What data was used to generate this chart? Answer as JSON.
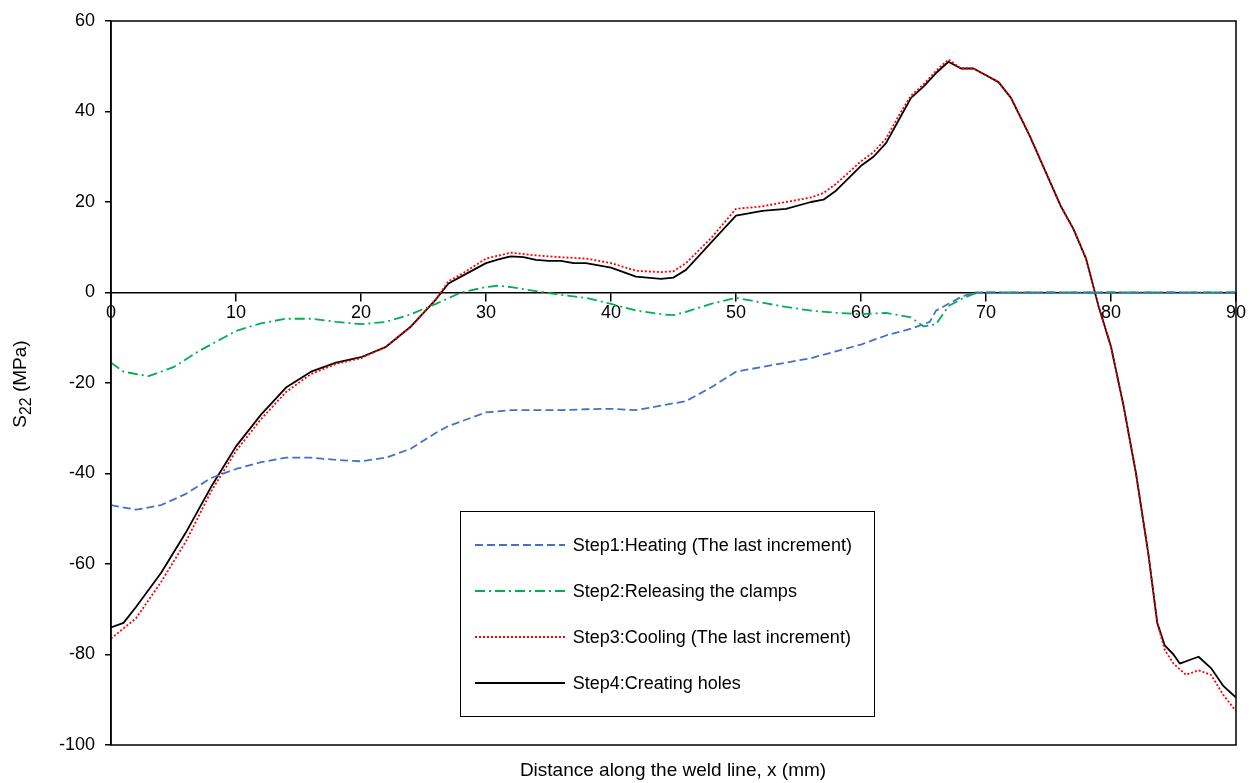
{
  "chart_data": {
    "type": "line",
    "xlabel": "Distance along the weld line, x (mm)",
    "ylabel": "S$_{22}$ (MPa)",
    "xlim": [
      0,
      90
    ],
    "xticks": [
      0,
      10,
      20,
      30,
      40,
      50,
      60,
      70,
      80,
      90
    ],
    "ylim": [
      -100,
      60
    ],
    "yticks": [
      -100,
      -80,
      -60,
      -40,
      -20,
      0,
      20,
      40,
      60
    ],
    "grid": false,
    "legend": "bottom",
    "marker": "none",
    "series": [
      {
        "name": "Step1:Heating (The last increment)",
        "color": "#4472c4",
        "line_style": "dashed",
        "x": [
          0,
          2,
          4,
          6,
          8,
          10,
          12,
          14,
          16,
          18,
          20,
          22,
          24,
          26,
          27,
          28,
          30,
          32,
          34,
          36,
          38,
          40,
          42,
          44,
          46,
          48,
          50,
          52,
          54,
          56,
          58,
          60,
          62,
          64,
          65,
          65.5,
          66,
          67,
          68,
          69,
          70,
          80,
          90
        ],
        "values": [
          -47,
          -48,
          -47,
          -44.5,
          -41,
          -39,
          -37.5,
          -36.5,
          -36.5,
          -37,
          -37.3,
          -36.5,
          -34.5,
          -31,
          -29.5,
          -28.5,
          -26.5,
          -26,
          -26,
          -26,
          -25.8,
          -25.7,
          -26,
          -25,
          -24,
          -21,
          -17.5,
          -16.5,
          -15.5,
          -14.5,
          -13,
          -11.5,
          -9.5,
          -8,
          -7,
          -6.5,
          -4,
          -2.5,
          -1,
          0,
          0,
          0,
          0
        ]
      },
      {
        "name": "Step2:Releasing the clamps",
        "color": "#00b050",
        "line_style": "dashdot",
        "x": [
          0,
          1,
          3,
          5,
          7,
          9,
          10,
          12,
          14,
          16,
          18,
          20,
          22,
          24,
          26,
          28,
          30,
          31,
          32,
          34,
          36,
          38,
          40,
          42,
          44,
          45,
          46,
          48,
          50,
          52,
          54,
          56,
          58,
          60,
          62,
          64,
          65,
          66,
          67,
          68,
          69,
          70,
          80,
          90
        ],
        "values": [
          -15.5,
          -17.5,
          -18.5,
          -16.5,
          -13,
          -10,
          -8.5,
          -6.8,
          -5.8,
          -5.8,
          -6.5,
          -7,
          -6.5,
          -4.8,
          -2.5,
          0,
          1.2,
          1.5,
          1.2,
          0.3,
          -0.5,
          -1.2,
          -2.5,
          -4,
          -4.8,
          -5,
          -4.3,
          -2.5,
          -1.2,
          -2.2,
          -3.2,
          -4,
          -4.5,
          -4.8,
          -4.5,
          -5.5,
          -7.5,
          -7,
          -3,
          -1.5,
          -0.3,
          0,
          0,
          0
        ]
      },
      {
        "name": "Step3:Cooling (The last increment)",
        "color": "#ff0000",
        "line_style": "dotted",
        "x": [
          0,
          2,
          4,
          6,
          8,
          10,
          12,
          14,
          16,
          18,
          20,
          22,
          24,
          26,
          27,
          28,
          30,
          32,
          34,
          36,
          38,
          40,
          42,
          44,
          45,
          46,
          48,
          50,
          52,
          54,
          56,
          57,
          58,
          60,
          61,
          62,
          63,
          64,
          65,
          66,
          67,
          68,
          69,
          70,
          71,
          72,
          73.5,
          76,
          77,
          78,
          79,
          80,
          81,
          82,
          83,
          83.7,
          84.3,
          85,
          86,
          87,
          88,
          89,
          90
        ],
        "values": [
          -76.5,
          -72,
          -64,
          -55,
          -44,
          -35,
          -28,
          -22,
          -18,
          -15.8,
          -14.5,
          -12,
          -7.5,
          -1.5,
          2.5,
          4,
          7.5,
          8.8,
          8.2,
          7.8,
          7.5,
          6.5,
          4.8,
          4.5,
          4.7,
          6.5,
          12,
          18.5,
          19,
          20,
          21,
          22,
          24,
          29,
          31,
          34,
          39,
          43.5,
          46,
          49,
          51.5,
          49.5,
          49.5,
          48,
          46.5,
          43,
          34.6,
          19,
          14,
          7.5,
          -3,
          -12,
          -25,
          -40,
          -58,
          -73,
          -79,
          -82,
          -84.5,
          -83.5,
          -84.5,
          -89,
          -92.5
        ]
      },
      {
        "name": "Step4:Creating holes",
        "color": "#000000",
        "line_style": "solid",
        "x": [
          0,
          1,
          2,
          4,
          6,
          8,
          10,
          12,
          14,
          16,
          18,
          20,
          22,
          24,
          26,
          27,
          28,
          30,
          31,
          32,
          33,
          34,
          35,
          36,
          37,
          38,
          40,
          42,
          44,
          45,
          46,
          48,
          50,
          52,
          54,
          56,
          57,
          58,
          60,
          61,
          62,
          63,
          64,
          65,
          66,
          67,
          68,
          69,
          70,
          71,
          72,
          73.5,
          76,
          77,
          78,
          79,
          80,
          81,
          82,
          83,
          83.7,
          84.3,
          85,
          85.5,
          86.5,
          87,
          88,
          89,
          90
        ],
        "values": [
          -74,
          -73,
          -69.5,
          -62,
          -53,
          -43,
          -34,
          -27,
          -21,
          -17.5,
          -15.5,
          -14.3,
          -12,
          -7.5,
          -1.5,
          2,
          3.5,
          6.5,
          7.3,
          8,
          7.8,
          7.2,
          7,
          7,
          6.5,
          6.5,
          5.5,
          3.5,
          3,
          3.3,
          5,
          11,
          17,
          18,
          18.5,
          20,
          20.5,
          22.5,
          28,
          30,
          33,
          38,
          43,
          45.5,
          48.5,
          51,
          49.5,
          49.5,
          48,
          46.5,
          43,
          34.6,
          19,
          14,
          7.5,
          -3,
          -12,
          -25,
          -40,
          -58,
          -73,
          -78,
          -80,
          -82,
          -81,
          -80.5,
          -83,
          -87,
          -89.5
        ]
      }
    ]
  }
}
